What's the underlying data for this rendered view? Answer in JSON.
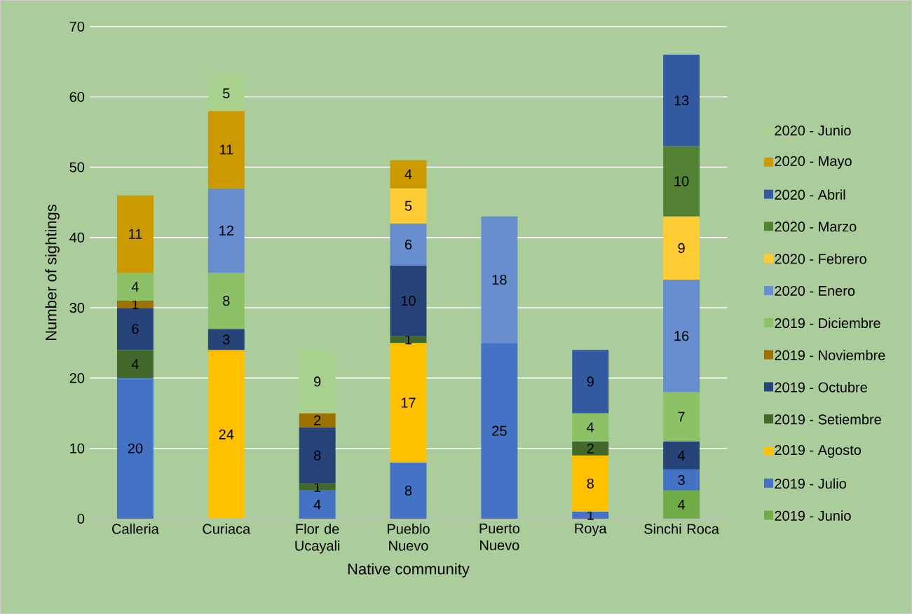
{
  "chart_data": {
    "type": "bar",
    "stacked": true,
    "data_labels": true,
    "grid": "y",
    "legend": "right",
    "xlabel": "Native community",
    "ylabel": "Number of sightings",
    "categories": [
      "Calleria",
      "Curiaca",
      "Flor de Ucayali",
      "Pueblo Nuevo",
      "Puerto Nuevo",
      "Roya",
      "Sinchi Roca"
    ],
    "ylim": [
      0,
      70
    ],
    "yticks": [
      0,
      10,
      20,
      30,
      40,
      50,
      60,
      70
    ],
    "series": [
      {
        "name": "2019 - Junio",
        "color": "#70ad47",
        "values": [
          null,
          null,
          null,
          null,
          null,
          null,
          4
        ]
      },
      {
        "name": "2019 - Julio",
        "color": "#4472c4",
        "values": [
          20,
          null,
          4,
          8,
          25,
          1,
          3
        ]
      },
      {
        "name": "2019 - Agosto",
        "color": "#ffc000",
        "values": [
          null,
          24,
          null,
          17,
          null,
          8,
          null
        ]
      },
      {
        "name": "2019 - Setiembre",
        "color": "#43682b",
        "values": [
          4,
          null,
          1,
          1,
          null,
          2,
          null
        ]
      },
      {
        "name": "2019 - Octubre",
        "color": "#264478",
        "values": [
          6,
          3,
          8,
          10,
          null,
          null,
          4
        ]
      },
      {
        "name": "2019 - Noviembre",
        "color": "#9e7000",
        "values": [
          1,
          null,
          2,
          null,
          null,
          null,
          null
        ]
      },
      {
        "name": "2019 - Diciembre",
        "color": "#8cc168",
        "values": [
          4,
          8,
          null,
          null,
          null,
          4,
          7
        ]
      },
      {
        "name": "2020 - Enero",
        "color": "#698ed0",
        "values": [
          null,
          12,
          null,
          6,
          18,
          null,
          16
        ]
      },
      {
        "name": "2020 - Febrero",
        "color": "#ffcd33",
        "values": [
          null,
          null,
          null,
          5,
          null,
          null,
          9
        ]
      },
      {
        "name": "2020 - Marzo",
        "color": "#548235",
        "values": [
          null,
          null,
          null,
          null,
          null,
          null,
          10
        ]
      },
      {
        "name": "2020 - Abril",
        "color": "#335aa1",
        "values": [
          null,
          null,
          null,
          null,
          null,
          9,
          13
        ]
      },
      {
        "name": "2020 - Mayo",
        "color": "#cc9a00",
        "values": [
          11,
          11,
          null,
          4,
          null,
          null,
          null
        ]
      },
      {
        "name": "2020 - Junio",
        "color": "#a9d18e",
        "values": [
          null,
          5,
          9,
          null,
          null,
          null,
          null
        ]
      }
    ]
  }
}
